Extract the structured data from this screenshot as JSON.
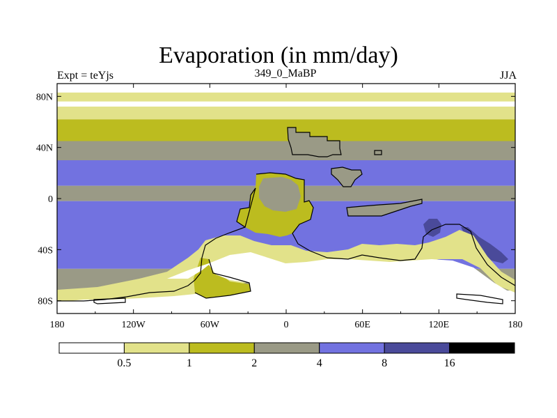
{
  "chart_data": {
    "type": "heatmap",
    "title": "Evaporation (in mm/day)",
    "left_label": "Expt = teYjs",
    "center_label": "349_0_MaBP",
    "right_label": "JJA",
    "x_ticks": [
      "180",
      "120W",
      "60W",
      "0",
      "60E",
      "120E",
      "180"
    ],
    "x_tick_values": [
      -180,
      -120,
      -60,
      0,
      60,
      120,
      180
    ],
    "y_ticks": [
      "80N",
      "40N",
      "0",
      "40S",
      "80S"
    ],
    "y_tick_values": [
      80,
      40,
      0,
      -40,
      -80
    ],
    "xlim": [
      -180,
      180
    ],
    "ylim": [
      -90,
      90
    ],
    "colorbar": {
      "levels": [
        "0.5",
        "1",
        "2",
        "4",
        "8",
        "16"
      ],
      "colors": [
        "#ffffff",
        "#e2e28a",
        "#bcbc1f",
        "#9a9a86",
        "#7272e0",
        "#4a4a9a",
        "#000000"
      ]
    },
    "bands": [
      {
        "lat_from": 90,
        "lat_to": 83,
        "level": 0
      },
      {
        "lat_from": 83,
        "lat_to": 75,
        "level": 1
      },
      {
        "lat_from": 75,
        "lat_to": 62,
        "level": 1
      },
      {
        "lat_from": 62,
        "lat_to": 45,
        "level": 2
      },
      {
        "lat_from": 45,
        "lat_to": 30,
        "level": 3
      },
      {
        "lat_from": 30,
        "lat_to": 10,
        "level": 4
      },
      {
        "lat_from": 10,
        "lat_to": -2,
        "level": 3
      },
      {
        "lat_from": -2,
        "lat_to": -55,
        "level": 4
      },
      {
        "lat_from": -55,
        "lat_to": -72,
        "level": 3
      },
      {
        "lat_from": -72,
        "lat_to": -90,
        "level": 0
      }
    ]
  }
}
